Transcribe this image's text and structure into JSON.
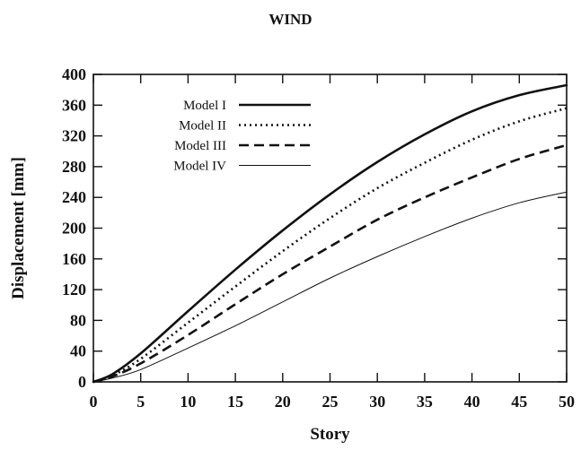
{
  "chart_data": {
    "type": "line",
    "title": "WIND",
    "xlabel": "Story",
    "ylabel": "Displacement [mm]",
    "xlim": [
      0,
      50
    ],
    "ylim": [
      0,
      400
    ],
    "xticks": [
      "0",
      "5",
      "10",
      "15",
      "20",
      "25",
      "30",
      "35",
      "40",
      "45",
      "50"
    ],
    "yticks": [
      "0",
      "40",
      "80",
      "120",
      "160",
      "200",
      "240",
      "280",
      "320",
      "360",
      "400"
    ],
    "grid": false,
    "legend_position": "top-left",
    "x": [
      0,
      2,
      5,
      10,
      15,
      20,
      25,
      30,
      35,
      40,
      45,
      50
    ],
    "series": [
      {
        "name": "Model I",
        "style": "solid-thick",
        "values": [
          0,
          10,
          37,
          92,
          146,
          197,
          244,
          286,
          322,
          352,
          373,
          386
        ]
      },
      {
        "name": "Model II",
        "style": "dotted",
        "values": [
          0,
          8,
          30,
          77,
          124,
          170,
          213,
          252,
          285,
          315,
          339,
          356
        ]
      },
      {
        "name": "Model III",
        "style": "dashed",
        "values": [
          0,
          7,
          24,
          61,
          101,
          140,
          176,
          211,
          240,
          266,
          290,
          308
        ]
      },
      {
        "name": "Model IV",
        "style": "solid-thin",
        "values": [
          0,
          5,
          16,
          44,
          73,
          104,
          135,
          163,
          189,
          213,
          233,
          247
        ]
      }
    ]
  },
  "colors": {
    "line": "#111111",
    "background": "#ffffff"
  }
}
